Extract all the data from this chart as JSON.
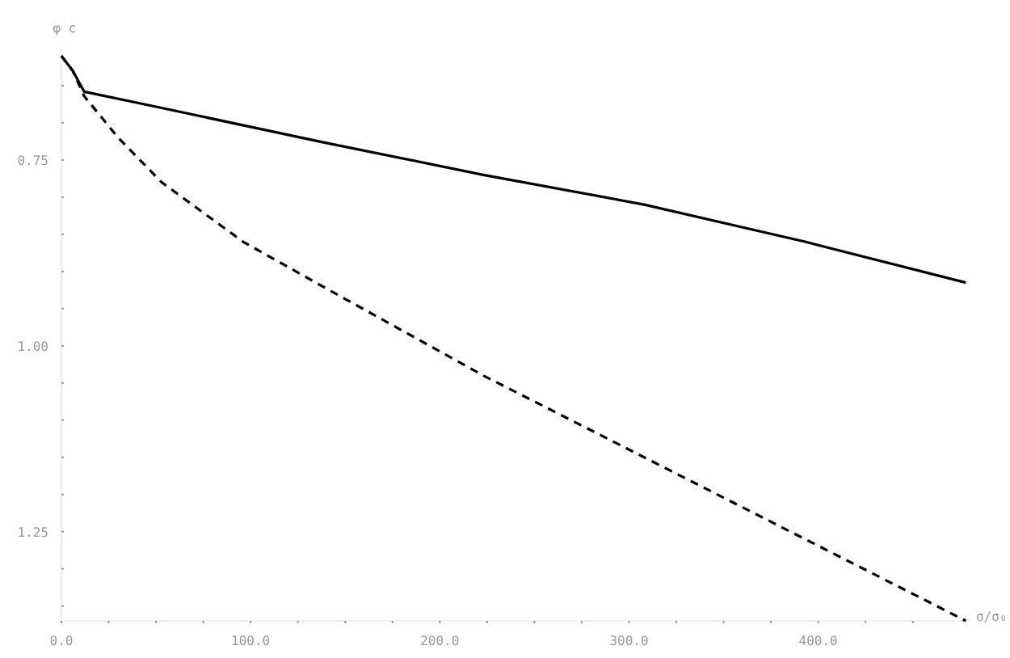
{
  "chart_data": {
    "type": "line",
    "ylabel": "φ c",
    "xlabel": "σ/σ₀",
    "xlim": [
      0,
      480
    ],
    "ylim": [
      1.37,
      0.6
    ],
    "xticks": [
      {
        "value": 0,
        "label": "0.0"
      },
      {
        "value": 25,
        "label": null
      },
      {
        "value": 50,
        "label": null
      },
      {
        "value": 75,
        "label": null
      },
      {
        "value": 100,
        "label": "100.0"
      },
      {
        "value": 125,
        "label": null
      },
      {
        "value": 150,
        "label": null
      },
      {
        "value": 175,
        "label": null
      },
      {
        "value": 200,
        "label": "200.0"
      },
      {
        "value": 225,
        "label": null
      },
      {
        "value": 250,
        "label": null
      },
      {
        "value": 275,
        "label": null
      },
      {
        "value": 300,
        "label": "300.0"
      },
      {
        "value": 325,
        "label": null
      },
      {
        "value": 350,
        "label": null
      },
      {
        "value": 375,
        "label": null
      },
      {
        "value": 400,
        "label": "400.0"
      },
      {
        "value": 425,
        "label": null
      },
      {
        "value": 450,
        "label": null
      }
    ],
    "yticks": [
      {
        "value": 0.65,
        "label": null
      },
      {
        "value": 0.7,
        "label": null
      },
      0.75,
      {
        "value": 0.8,
        "label": null
      },
      {
        "value": 0.85,
        "label": null
      },
      {
        "value": 0.9,
        "label": null
      },
      {
        "value": 0.95,
        "label": null
      },
      {
        "value": 1.0,
        "label": "1.00"
      },
      {
        "value": 1.05,
        "label": null
      },
      {
        "value": 1.1,
        "label": null
      },
      {
        "value": 1.15,
        "label": null
      },
      {
        "value": 1.2,
        "label": null
      },
      {
        "value": 1.25,
        "label": "1.25"
      },
      {
        "value": 1.3,
        "label": null
      },
      {
        "value": 1.35,
        "label": null
      }
    ],
    "grid": false,
    "marker": "none",
    "series": [
      {
        "color": "#000000",
        "line_style": "solid",
        "x": [
          0,
          6,
          12,
          53,
          138,
          223,
          308,
          393,
          478
        ],
        "values": [
          0.61,
          0.63,
          0.658,
          0.68,
          0.726,
          0.77,
          0.81,
          0.86,
          0.915
        ]
      },
      {
        "color": "#000000",
        "line_style": "dashed",
        "x": [
          0,
          6,
          12,
          30,
          53,
          96,
          138,
          223,
          308,
          393,
          478
        ],
        "values": [
          0.61,
          0.63,
          0.664,
          0.72,
          0.78,
          0.86,
          0.92,
          1.04,
          1.15,
          1.26,
          1.37
        ]
      }
    ]
  }
}
